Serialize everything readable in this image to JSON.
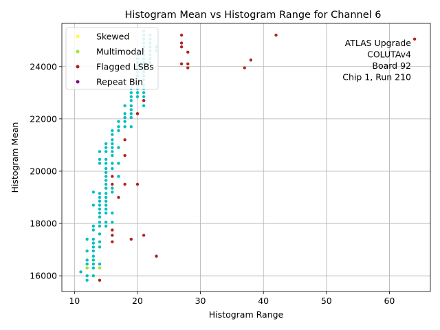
{
  "chart_data": {
    "type": "scatter",
    "title": "Histogram Mean vs Histogram Range for Channel 6",
    "xlabel": "Histogram Range",
    "ylabel": "Histogram Mean",
    "xlim": [
      8,
      66.5
    ],
    "ylim": [
      15400,
      25650
    ],
    "xticks": [
      10,
      20,
      30,
      40,
      50,
      60
    ],
    "yticks": [
      16000,
      18000,
      20000,
      22000,
      24000
    ],
    "grid": true,
    "legend_position": "top-left",
    "annotation_lines": [
      "ATLAS Upgrade",
      "COLUTAv4",
      "Board 92",
      "Chip 1, Run 210"
    ],
    "series": [
      {
        "name": "",
        "color": "#00bfbf",
        "points": [
          [
            11,
            16150
          ],
          [
            12,
            15830
          ],
          [
            12,
            16000
          ],
          [
            12,
            16300
          ],
          [
            12,
            16450
          ],
          [
            12,
            16600
          ],
          [
            12,
            16950
          ],
          [
            12,
            17400
          ],
          [
            13,
            16000
          ],
          [
            13,
            16300
          ],
          [
            13,
            16450
          ],
          [
            13,
            16600
          ],
          [
            13,
            16750
          ],
          [
            13,
            16950
          ],
          [
            13,
            17100
          ],
          [
            13,
            17250
          ],
          [
            13,
            17400
          ],
          [
            13,
            17750
          ],
          [
            13,
            17900
          ],
          [
            13,
            18700
          ],
          [
            13,
            19200
          ],
          [
            14,
            16450
          ],
          [
            14,
            17100
          ],
          [
            14,
            17300
          ],
          [
            14,
            17600
          ],
          [
            14,
            17900
          ],
          [
            14,
            18050
          ],
          [
            14,
            18250
          ],
          [
            14,
            18400
          ],
          [
            14,
            18550
          ],
          [
            14,
            18700
          ],
          [
            14,
            18850
          ],
          [
            14,
            19000
          ],
          [
            14,
            19150
          ],
          [
            14,
            20300
          ],
          [
            14,
            20450
          ],
          [
            14,
            20750
          ],
          [
            15,
            17900
          ],
          [
            15,
            18050
          ],
          [
            15,
            18400
          ],
          [
            15,
            18550
          ],
          [
            15,
            18700
          ],
          [
            15,
            18850
          ],
          [
            15,
            19000
          ],
          [
            15,
            19150
          ],
          [
            15,
            19350
          ],
          [
            15,
            19500
          ],
          [
            15,
            19650
          ],
          [
            15,
            19800
          ],
          [
            15,
            19950
          ],
          [
            15,
            20100
          ],
          [
            15,
            20300
          ],
          [
            15,
            20450
          ],
          [
            15,
            20750
          ],
          [
            15,
            20900
          ],
          [
            15,
            21050
          ],
          [
            16,
            18050
          ],
          [
            16,
            18400
          ],
          [
            16,
            19200
          ],
          [
            16,
            19350
          ],
          [
            16,
            20100
          ],
          [
            16,
            20300
          ],
          [
            16,
            20600
          ],
          [
            16,
            20750
          ],
          [
            16,
            20900
          ],
          [
            16,
            21050
          ],
          [
            16,
            21200
          ],
          [
            16,
            21400
          ],
          [
            16,
            21550
          ],
          [
            17,
            19800
          ],
          [
            17,
            20300
          ],
          [
            17,
            20900
          ],
          [
            17,
            21550
          ],
          [
            17,
            21700
          ],
          [
            17,
            21900
          ],
          [
            18,
            21700
          ],
          [
            18,
            21900
          ],
          [
            18,
            22050
          ],
          [
            18,
            22200
          ],
          [
            18,
            22500
          ],
          [
            19,
            21700
          ],
          [
            19,
            22050
          ],
          [
            19,
            22200
          ],
          [
            19,
            22350
          ],
          [
            19,
            22500
          ],
          [
            19,
            22700
          ],
          [
            19,
            22850
          ],
          [
            19,
            23000
          ],
          [
            19,
            23150
          ],
          [
            20,
            22200
          ],
          [
            20,
            22850
          ],
          [
            20,
            23000
          ],
          [
            20,
            23150
          ],
          [
            20,
            23300
          ],
          [
            20,
            23450
          ],
          [
            20,
            23650
          ],
          [
            20,
            23800
          ],
          [
            20,
            24000
          ],
          [
            20,
            24150
          ],
          [
            20,
            24300
          ],
          [
            20,
            24450
          ],
          [
            21,
            22500
          ],
          [
            21,
            22700
          ],
          [
            21,
            22850
          ],
          [
            21,
            23000
          ],
          [
            21,
            23150
          ],
          [
            21,
            23300
          ],
          [
            21,
            23500
          ],
          [
            21,
            23650
          ],
          [
            21,
            23800
          ],
          [
            21,
            24000
          ],
          [
            21,
            24150
          ],
          [
            21,
            24300
          ],
          [
            21,
            24450
          ],
          [
            21,
            24600
          ],
          [
            21,
            24750
          ],
          [
            21,
            24900
          ],
          [
            21,
            25050
          ],
          [
            21,
            25200
          ],
          [
            21,
            25350
          ],
          [
            22,
            24150
          ],
          [
            22,
            24300
          ],
          [
            22,
            24450
          ],
          [
            22,
            24600
          ],
          [
            22,
            24750
          ],
          [
            22,
            24900
          ],
          [
            22,
            25050
          ],
          [
            22,
            25200
          ],
          [
            23,
            24600
          ],
          [
            23,
            24750
          ]
        ]
      },
      {
        "name": "Skewed",
        "color": "#ffff33",
        "points": [
          [
            12,
            16300
          ],
          [
            14,
            16300
          ]
        ]
      },
      {
        "name": "Multimodal",
        "color": "#a6e22e",
        "points": [
          [
            12,
            16300
          ],
          [
            14,
            16300
          ]
        ]
      },
      {
        "name": "Flagged LSBs",
        "color": "#b22222",
        "points": [
          [
            14,
            15830
          ],
          [
            16,
            17300
          ],
          [
            16,
            17550
          ],
          [
            16,
            17750
          ],
          [
            16,
            19500
          ],
          [
            16,
            19800
          ],
          [
            17,
            19000
          ],
          [
            18,
            19500
          ],
          [
            18,
            20600
          ],
          [
            18,
            21200
          ],
          [
            19,
            17400
          ],
          [
            20,
            19500
          ],
          [
            20,
            22200
          ],
          [
            21,
            17550
          ],
          [
            21,
            22700
          ],
          [
            23,
            16750
          ],
          [
            27,
            24100
          ],
          [
            27,
            24750
          ],
          [
            27,
            24900
          ],
          [
            27,
            25200
          ],
          [
            28,
            23950
          ],
          [
            28,
            24100
          ],
          [
            28,
            24550
          ],
          [
            37,
            23950
          ],
          [
            38,
            24250
          ],
          [
            42,
            25200
          ],
          [
            64,
            25050
          ]
        ]
      },
      {
        "name": "Repeat Bin",
        "color": "#800080",
        "points": []
      }
    ]
  }
}
